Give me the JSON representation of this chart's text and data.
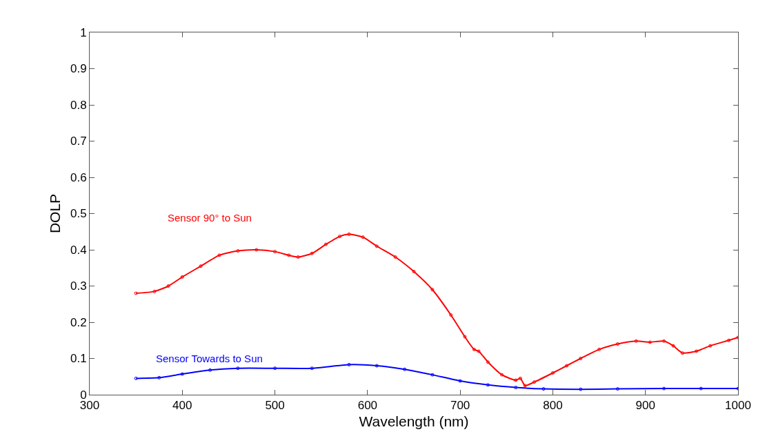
{
  "chart_data": {
    "type": "line",
    "xlabel": "Wavelength (nm)",
    "ylabel": "DOLP",
    "xlim": [
      300,
      1000
    ],
    "ylim": [
      0,
      1
    ],
    "xticks": [
      300,
      400,
      500,
      600,
      700,
      800,
      900,
      1000
    ],
    "yticks": [
      0,
      0.1,
      0.2,
      0.3,
      0.4,
      0.5,
      0.6,
      0.7,
      0.8,
      0.9,
      1
    ],
    "legend": false,
    "marker": "circle",
    "line_style": "solid",
    "series": [
      {
        "name": "Sensor 90° to Sun",
        "color": "#ff0000",
        "x": [
          350,
          370,
          385,
          400,
          420,
          440,
          460,
          480,
          500,
          515,
          525,
          540,
          555,
          570,
          580,
          595,
          610,
          630,
          650,
          670,
          690,
          705,
          715,
          720,
          730,
          745,
          760,
          765,
          770,
          780,
          800,
          815,
          830,
          850,
          870,
          890,
          905,
          920,
          930,
          940,
          955,
          970,
          990,
          1000
        ],
        "values": [
          0.28,
          0.285,
          0.3,
          0.325,
          0.355,
          0.385,
          0.397,
          0.4,
          0.395,
          0.385,
          0.38,
          0.39,
          0.415,
          0.437,
          0.443,
          0.435,
          0.41,
          0.38,
          0.34,
          0.29,
          0.22,
          0.16,
          0.125,
          0.12,
          0.09,
          0.055,
          0.04,
          0.045,
          0.025,
          0.035,
          0.06,
          0.08,
          0.1,
          0.125,
          0.14,
          0.148,
          0.145,
          0.148,
          0.135,
          0.115,
          0.12,
          0.135,
          0.15,
          0.158
        ]
      },
      {
        "name": "Sensor Towards to Sun",
        "color": "#0000ff",
        "x": [
          350,
          375,
          400,
          430,
          460,
          500,
          540,
          580,
          610,
          640,
          670,
          700,
          730,
          760,
          790,
          830,
          870,
          920,
          960,
          1000
        ],
        "values": [
          0.045,
          0.047,
          0.057,
          0.068,
          0.073,
          0.073,
          0.073,
          0.083,
          0.08,
          0.07,
          0.055,
          0.038,
          0.027,
          0.02,
          0.016,
          0.015,
          0.016,
          0.017,
          0.017,
          0.017
        ]
      }
    ]
  }
}
